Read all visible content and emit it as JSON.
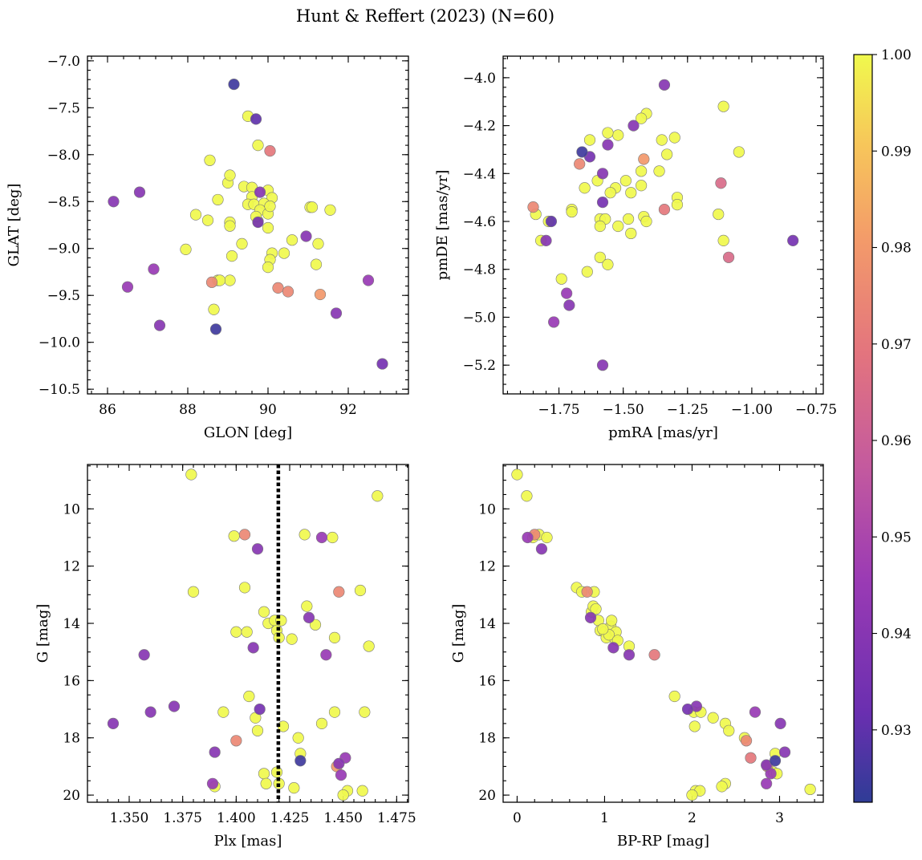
{
  "title": "Hunt & Reffert (2023) (N=60)",
  "colorbar": {
    "min": 0.9225,
    "max": 1.0,
    "ticks": [
      0.93,
      0.94,
      0.95,
      0.96,
      0.97,
      0.98,
      0.99,
      1.0
    ],
    "tick_labels": [
      "0.93",
      "0.94",
      "0.95",
      "0.96",
      "0.97",
      "0.98",
      "0.99",
      "1.00"
    ],
    "colormap": "plasma"
  },
  "chart_data": [
    {
      "type": "scatter",
      "xlabel": "GLON [deg]",
      "ylabel": "GLAT [deg]",
      "xlim": [
        85.5,
        93.5
      ],
      "ylim": [
        -10.55,
        -6.95
      ],
      "xticks": [
        86,
        88,
        90,
        92
      ],
      "xtick_labels": [
        "86",
        "88",
        "90",
        "92"
      ],
      "yticks": [
        -10.5,
        -10.0,
        -9.5,
        -9.0,
        -8.5,
        -8.0,
        -7.5,
        -7.0
      ],
      "ytick_labels": [
        "−10.5",
        "−10.0",
        "−9.5",
        "−9.0",
        "−8.5",
        "−8.0",
        "−7.5",
        "−7.0"
      ],
      "points": [
        [
          89.15,
          -7.25,
          0.925
        ],
        [
          86.15,
          -8.5,
          0.94
        ],
        [
          86.8,
          -8.4,
          0.94
        ],
        [
          87.15,
          -9.22,
          0.945
        ],
        [
          86.5,
          -9.41,
          0.945
        ],
        [
          87.3,
          -9.82,
          0.94
        ],
        [
          88.7,
          -9.86,
          0.925
        ],
        [
          89.7,
          -7.62,
          0.93
        ],
        [
          89.8,
          -8.4,
          0.94
        ],
        [
          89.75,
          -8.72,
          0.935
        ],
        [
          90.95,
          -8.87,
          0.94
        ],
        [
          91.7,
          -9.69,
          0.94
        ],
        [
          92.5,
          -9.34,
          0.945
        ],
        [
          92.85,
          -10.23,
          0.935
        ],
        [
          90.05,
          -7.96,
          0.97
        ],
        [
          88.6,
          -9.36,
          0.975
        ],
        [
          90.25,
          -9.42,
          0.975
        ],
        [
          90.5,
          -9.46,
          0.975
        ],
        [
          91.3,
          -9.49,
          0.98
        ],
        [
          89.5,
          -7.59,
          1.0
        ],
        [
          88.55,
          -8.06,
          1.0
        ],
        [
          89.75,
          -7.9,
          1.0
        ],
        [
          89.4,
          -8.34,
          1.0
        ],
        [
          89.6,
          -8.35,
          1.0
        ],
        [
          89.0,
          -8.3,
          1.0
        ],
        [
          89.05,
          -8.22,
          1.0
        ],
        [
          88.75,
          -8.48,
          1.0
        ],
        [
          89.6,
          -8.45,
          1.0
        ],
        [
          90.0,
          -8.38,
          1.0
        ],
        [
          90.1,
          -8.46,
          1.0
        ],
        [
          89.5,
          -8.53,
          1.0
        ],
        [
          89.65,
          -8.53,
          1.0
        ],
        [
          89.9,
          -8.52,
          1.0
        ],
        [
          91.05,
          -8.56,
          1.0
        ],
        [
          91.55,
          -8.59,
          1.0
        ],
        [
          89.8,
          -8.59,
          1.0
        ],
        [
          90.0,
          -8.63,
          1.0
        ],
        [
          88.2,
          -8.64,
          1.0
        ],
        [
          88.5,
          -8.7,
          1.0
        ],
        [
          89.05,
          -8.72,
          1.0
        ],
        [
          89.05,
          -8.76,
          1.0
        ],
        [
          89.75,
          -8.71,
          1.0
        ],
        [
          90.0,
          -8.78,
          1.0
        ],
        [
          90.6,
          -8.91,
          1.0
        ],
        [
          89.35,
          -8.95,
          1.0
        ],
        [
          91.25,
          -8.95,
          1.0
        ],
        [
          87.95,
          -9.01,
          1.0
        ],
        [
          90.1,
          -9.05,
          1.0
        ],
        [
          90.4,
          -9.05,
          1.0
        ],
        [
          89.1,
          -9.08,
          1.0
        ],
        [
          90.05,
          -9.12,
          1.0
        ],
        [
          90.0,
          -9.2,
          1.0
        ],
        [
          91.2,
          -9.17,
          1.0
        ],
        [
          88.75,
          -9.34,
          1.0
        ],
        [
          89.05,
          -9.34,
          1.0
        ],
        [
          88.65,
          -9.65,
          1.0
        ],
        [
          88.8,
          -9.34,
          1.0
        ],
        [
          89.7,
          -8.66,
          1.0
        ],
        [
          90.05,
          -8.55,
          1.0
        ],
        [
          91.1,
          -8.56,
          1.0
        ]
      ]
    },
    {
      "type": "scatter",
      "xlabel": "pmRA [mas/yr]",
      "ylabel": "pmDE [mas/yr]",
      "xlim": [
        -1.967,
        -0.722
      ],
      "ylim": [
        -5.32,
        -3.91
      ],
      "xticks": [
        -1.75,
        -1.5,
        -1.25,
        -1.0,
        -0.75
      ],
      "xtick_labels": [
        "−1.75",
        "−1.50",
        "−1.25",
        "−1.00",
        "−0.75"
      ],
      "yticks": [
        -5.2,
        -5.0,
        -4.8,
        -4.6,
        -4.4,
        -4.2,
        -4.0
      ],
      "ytick_labels": [
        "−5.2",
        "−5.0",
        "−4.8",
        "−4.6",
        "−4.4",
        "−4.2",
        "−4.0"
      ],
      "points": [
        [
          -1.34,
          -4.03,
          0.94
        ],
        [
          -1.66,
          -4.31,
          0.925
        ],
        [
          -1.63,
          -4.33,
          0.935
        ],
        [
          -1.56,
          -4.28,
          0.94
        ],
        [
          -1.46,
          -4.2,
          0.94
        ],
        [
          -1.58,
          -4.4,
          0.94
        ],
        [
          -1.58,
          -4.52,
          0.935
        ],
        [
          -1.78,
          -4.6,
          0.93
        ],
        [
          -1.8,
          -4.68,
          0.94
        ],
        [
          -1.72,
          -4.9,
          0.945
        ],
        [
          -1.71,
          -4.95,
          0.94
        ],
        [
          -1.77,
          -5.02,
          0.945
        ],
        [
          -1.58,
          -5.2,
          0.94
        ],
        [
          -0.84,
          -4.68,
          0.935
        ],
        [
          -1.67,
          -4.36,
          0.975
        ],
        [
          -1.42,
          -4.34,
          0.98
        ],
        [
          -1.85,
          -4.54,
          0.975
        ],
        [
          -1.34,
          -4.55,
          0.97
        ],
        [
          -1.12,
          -4.44,
          0.965
        ],
        [
          -1.09,
          -4.75,
          0.965
        ],
        [
          -1.11,
          -4.12,
          1.0
        ],
        [
          -1.41,
          -4.15,
          1.0
        ],
        [
          -1.43,
          -4.17,
          1.0
        ],
        [
          -1.3,
          -4.25,
          1.0
        ],
        [
          -1.35,
          -4.26,
          1.0
        ],
        [
          -1.63,
          -4.26,
          1.0
        ],
        [
          -1.52,
          -4.24,
          1.0
        ],
        [
          -1.33,
          -4.32,
          1.0
        ],
        [
          -1.05,
          -4.31,
          1.0
        ],
        [
          -1.36,
          -4.39,
          1.0
        ],
        [
          -1.43,
          -4.39,
          1.0
        ],
        [
          -1.49,
          -4.43,
          1.0
        ],
        [
          -1.6,
          -4.43,
          1.0
        ],
        [
          -1.53,
          -4.46,
          1.0
        ],
        [
          -1.65,
          -4.46,
          1.0
        ],
        [
          -1.43,
          -4.45,
          1.0
        ],
        [
          -1.47,
          -4.48,
          1.0
        ],
        [
          -1.55,
          -4.48,
          1.0
        ],
        [
          -1.29,
          -4.5,
          1.0
        ],
        [
          -1.29,
          -4.53,
          1.0
        ],
        [
          -1.7,
          -4.55,
          1.0
        ],
        [
          -1.7,
          -4.56,
          1.0
        ],
        [
          -1.84,
          -4.57,
          1.0
        ],
        [
          -1.13,
          -4.57,
          1.0
        ],
        [
          -1.42,
          -4.58,
          1.0
        ],
        [
          -1.59,
          -4.59,
          1.0
        ],
        [
          -1.57,
          -4.59,
          1.0
        ],
        [
          -1.79,
          -4.6,
          1.0
        ],
        [
          -1.48,
          -4.59,
          1.0
        ],
        [
          -1.41,
          -4.6,
          1.0
        ],
        [
          -1.59,
          -4.62,
          1.0
        ],
        [
          -1.52,
          -4.62,
          1.0
        ],
        [
          -1.47,
          -4.65,
          1.0
        ],
        [
          -1.82,
          -4.68,
          1.0
        ],
        [
          -1.11,
          -4.68,
          1.0
        ],
        [
          -1.59,
          -4.75,
          1.0
        ],
        [
          -1.56,
          -4.78,
          1.0
        ],
        [
          -1.64,
          -4.81,
          1.0
        ],
        [
          -1.74,
          -4.84,
          1.0
        ],
        [
          -1.56,
          -4.23,
          1.0
        ]
      ]
    },
    {
      "type": "scatter",
      "xlabel": "Plx [mas]",
      "ylabel": "G [mag]",
      "xlim": [
        1.3305,
        1.4805
      ],
      "ylim": [
        20.25,
        8.45
      ],
      "y_inverted": true,
      "xticks": [
        1.35,
        1.375,
        1.4,
        1.425,
        1.45,
        1.475
      ],
      "xtick_labels": [
        "1.350",
        "1.375",
        "1.400",
        "1.425",
        "1.450",
        "1.475"
      ],
      "yticks": [
        10,
        12,
        14,
        16,
        18,
        20
      ],
      "ytick_labels": [
        "10",
        "12",
        "14",
        "16",
        "18",
        "20"
      ],
      "vline": {
        "x": 1.4197,
        "style": "dotted"
      },
      "points": [
        [
          1.3425,
          17.5,
          0.94
        ],
        [
          1.357,
          15.1,
          0.94
        ],
        [
          1.36,
          17.1,
          0.94
        ],
        [
          1.371,
          16.9,
          0.94
        ],
        [
          1.39,
          18.5,
          0.94
        ],
        [
          1.389,
          19.6,
          0.945
        ],
        [
          1.41,
          11.4,
          0.94
        ],
        [
          1.408,
          14.85,
          0.94
        ],
        [
          1.411,
          17.0,
          0.935
        ],
        [
          1.43,
          18.8,
          0.925
        ],
        [
          1.434,
          13.8,
          0.94
        ],
        [
          1.44,
          11.0,
          0.945
        ],
        [
          1.442,
          15.1,
          0.945
        ],
        [
          1.449,
          19.3,
          0.945
        ],
        [
          1.451,
          18.7,
          0.945
        ],
        [
          1.448,
          18.9,
          0.94
        ],
        [
          1.404,
          10.9,
          0.975
        ],
        [
          1.4,
          18.1,
          0.975
        ],
        [
          1.448,
          12.9,
          0.975
        ],
        [
          1.447,
          19.0,
          0.98
        ],
        [
          1.379,
          8.8,
          1.0
        ],
        [
          1.38,
          12.9,
          1.0
        ],
        [
          1.399,
          10.95,
          1.0
        ],
        [
          1.4,
          14.3,
          1.0
        ],
        [
          1.404,
          12.75,
          1.0
        ],
        [
          1.405,
          14.3,
          1.0
        ],
        [
          1.406,
          16.55,
          1.0
        ],
        [
          1.409,
          17.3,
          1.0
        ],
        [
          1.41,
          17.75,
          1.0
        ],
        [
          1.413,
          13.6,
          1.0
        ],
        [
          1.415,
          14.0,
          1.0
        ],
        [
          1.418,
          13.9,
          1.0
        ],
        [
          1.419,
          14.25,
          1.0
        ],
        [
          1.42,
          14.5,
          1.0
        ],
        [
          1.421,
          13.9,
          1.0
        ],
        [
          1.426,
          14.55,
          1.0
        ],
        [
          1.422,
          17.6,
          1.0
        ],
        [
          1.429,
          18.0,
          1.0
        ],
        [
          1.43,
          18.55,
          1.0
        ],
        [
          1.432,
          10.9,
          1.0
        ],
        [
          1.433,
          13.4,
          1.0
        ],
        [
          1.437,
          14.05,
          1.0
        ],
        [
          1.44,
          17.5,
          1.0
        ],
        [
          1.445,
          11.0,
          1.0
        ],
        [
          1.446,
          14.5,
          1.0
        ],
        [
          1.446,
          17.1,
          1.0
        ],
        [
          1.458,
          12.85,
          1.0
        ],
        [
          1.46,
          17.1,
          1.0
        ],
        [
          1.462,
          14.8,
          1.0
        ],
        [
          1.466,
          9.55,
          1.0
        ],
        [
          1.459,
          19.85,
          1.0
        ],
        [
          1.452,
          19.85,
          1.0
        ],
        [
          1.45,
          20.0,
          1.0
        ],
        [
          1.427,
          19.75,
          1.0
        ],
        [
          1.419,
          19.2,
          1.0
        ],
        [
          1.413,
          19.25,
          1.0
        ],
        [
          1.414,
          19.6,
          1.0
        ],
        [
          1.42,
          19.6,
          1.0
        ],
        [
          1.39,
          19.7,
          1.0
        ],
        [
          1.394,
          17.1,
          1.0
        ]
      ]
    },
    {
      "type": "scatter",
      "xlabel": "BP-RP [mag]",
      "ylabel": "G [mag]",
      "xlim": [
        -0.16,
        3.5
      ],
      "ylim": [
        20.25,
        8.45
      ],
      "y_inverted": true,
      "xticks": [
        0,
        1,
        2,
        3
      ],
      "xtick_labels": [
        "0",
        "1",
        "2",
        "3"
      ],
      "yticks": [
        10,
        12,
        14,
        16,
        18,
        20
      ],
      "ytick_labels": [
        "10",
        "12",
        "14",
        "16",
        "18",
        "20"
      ],
      "points": [
        [
          0.12,
          11.0,
          0.945
        ],
        [
          0.28,
          11.4,
          0.94
        ],
        [
          0.84,
          13.8,
          0.94
        ],
        [
          1.28,
          15.1,
          0.94
        ],
        [
          1.1,
          14.85,
          0.94
        ],
        [
          1.95,
          17.0,
          0.935
        ],
        [
          2.05,
          16.9,
          0.94
        ],
        [
          2.72,
          17.1,
          0.945
        ],
        [
          3.01,
          17.5,
          0.94
        ],
        [
          3.06,
          18.5,
          0.94
        ],
        [
          2.85,
          18.95,
          0.94
        ],
        [
          2.95,
          18.8,
          0.925
        ],
        [
          2.85,
          19.6,
          0.945
        ],
        [
          2.9,
          19.25,
          0.945
        ],
        [
          1.57,
          15.1,
          0.97
        ],
        [
          0.2,
          10.9,
          0.975
        ],
        [
          0.8,
          12.9,
          0.975
        ],
        [
          2.62,
          18.1,
          0.975
        ],
        [
          2.67,
          18.7,
          0.97
        ],
        [
          2.86,
          19.0,
          0.98
        ],
        [
          0.0,
          8.8,
          1.0
        ],
        [
          0.11,
          9.55,
          1.0
        ],
        [
          0.18,
          11.0,
          1.0
        ],
        [
          0.25,
          10.9,
          1.0
        ],
        [
          0.34,
          11.0,
          1.0
        ],
        [
          0.68,
          12.75,
          1.0
        ],
        [
          0.74,
          12.9,
          1.0
        ],
        [
          0.88,
          12.9,
          1.0
        ],
        [
          0.85,
          13.6,
          1.0
        ],
        [
          0.87,
          13.4,
          1.0
        ],
        [
          0.93,
          13.9,
          1.0
        ],
        [
          0.95,
          14.25,
          1.0
        ],
        [
          1.0,
          14.3,
          1.0
        ],
        [
          1.02,
          14.5,
          1.0
        ],
        [
          1.07,
          14.1,
          1.0
        ],
        [
          1.08,
          13.9,
          1.0
        ],
        [
          1.12,
          14.55,
          1.0
        ],
        [
          1.13,
          14.3,
          1.0
        ],
        [
          1.28,
          14.8,
          1.0
        ],
        [
          1.8,
          16.55,
          1.0
        ],
        [
          2.02,
          17.1,
          1.0
        ],
        [
          2.1,
          17.1,
          1.0
        ],
        [
          2.03,
          17.6,
          1.0
        ],
        [
          2.24,
          17.3,
          1.0
        ],
        [
          2.38,
          17.5,
          1.0
        ],
        [
          2.42,
          17.75,
          1.0
        ],
        [
          2.6,
          18.0,
          1.0
        ],
        [
          2.95,
          18.55,
          1.0
        ],
        [
          2.93,
          19.2,
          1.0
        ],
        [
          2.97,
          19.25,
          1.0
        ],
        [
          2.38,
          19.6,
          1.0
        ],
        [
          2.34,
          19.7,
          1.0
        ],
        [
          2.04,
          19.85,
          1.0
        ],
        [
          2.09,
          19.85,
          1.0
        ],
        [
          2.0,
          20.0,
          1.0
        ],
        [
          3.35,
          19.8,
          1.0
        ],
        [
          1.05,
          14.4,
          1.0
        ],
        [
          0.98,
          14.2,
          1.0
        ],
        [
          1.15,
          14.6,
          1.0
        ],
        [
          0.9,
          13.5,
          1.0
        ]
      ]
    }
  ]
}
